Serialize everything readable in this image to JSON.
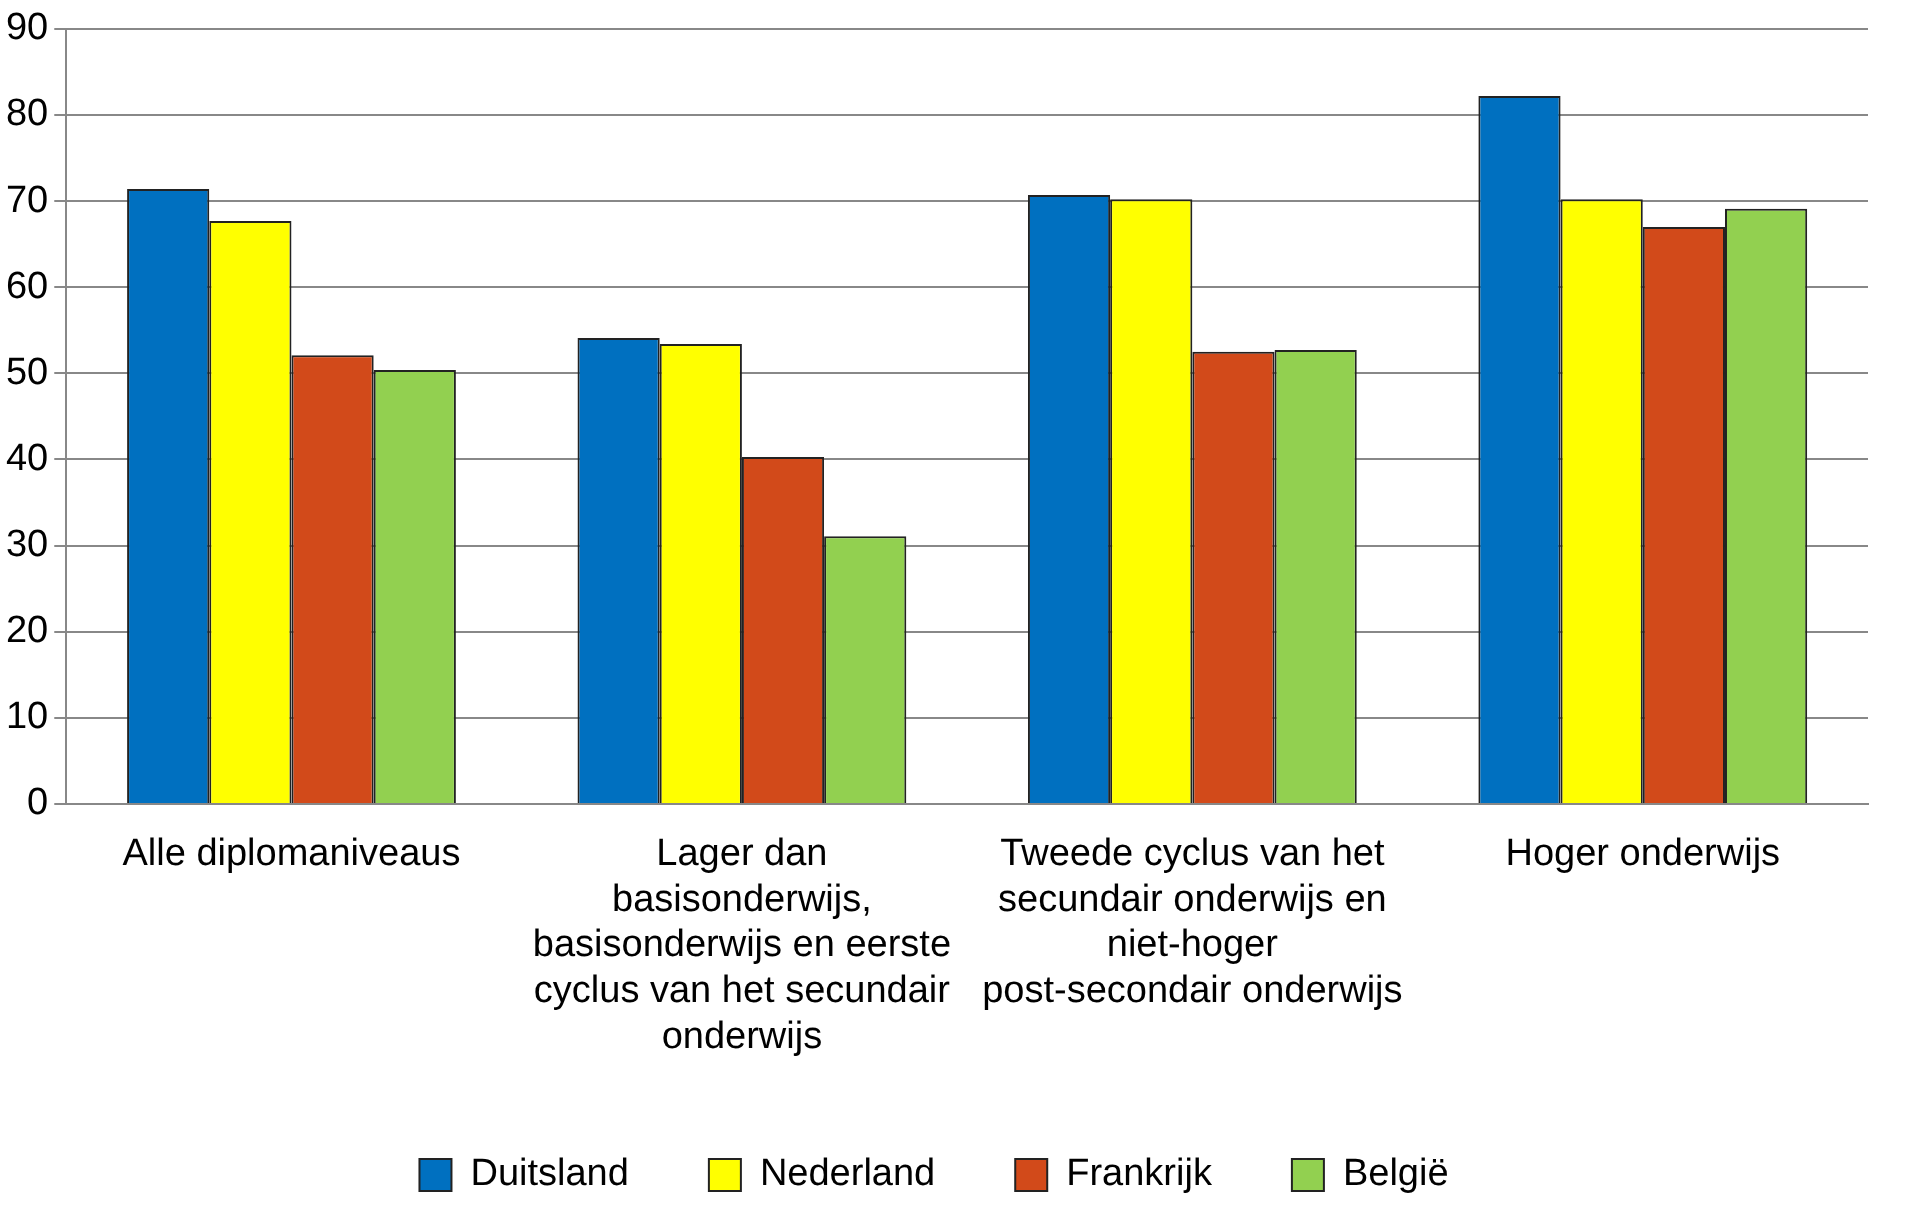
{
  "chart_data": {
    "type": "bar",
    "categories": [
      "Alle diplomaniveaus",
      "Lager dan basisonderwijs, basisonderwijs en eerste cyclus van het secundair onderwijs",
      "Tweede cyclus van het secundair onderwijs en niet-hoger post-secondair onderwijs",
      "Hoger onderwijs"
    ],
    "series": [
      {
        "name": "Duitsland",
        "color": "#0070c0",
        "values": [
          71.4,
          54.1,
          70.7,
          82.2
        ]
      },
      {
        "name": "Nederland",
        "color": "#ffff00",
        "values": [
          67.7,
          53.4,
          70.2,
          70.2
        ]
      },
      {
        "name": "Frankrijk",
        "color": "#d24a1a",
        "values": [
          52.1,
          40.3,
          52.5,
          67.0
        ]
      },
      {
        "name": "België",
        "color": "#92d050",
        "values": [
          50.4,
          31.1,
          52.7,
          69.1
        ]
      }
    ],
    "ylim": [
      0,
      90
    ],
    "yticks": [
      0,
      10,
      20,
      30,
      40,
      50,
      60,
      70,
      80,
      90
    ],
    "grid": "y",
    "legend": "bottom"
  }
}
